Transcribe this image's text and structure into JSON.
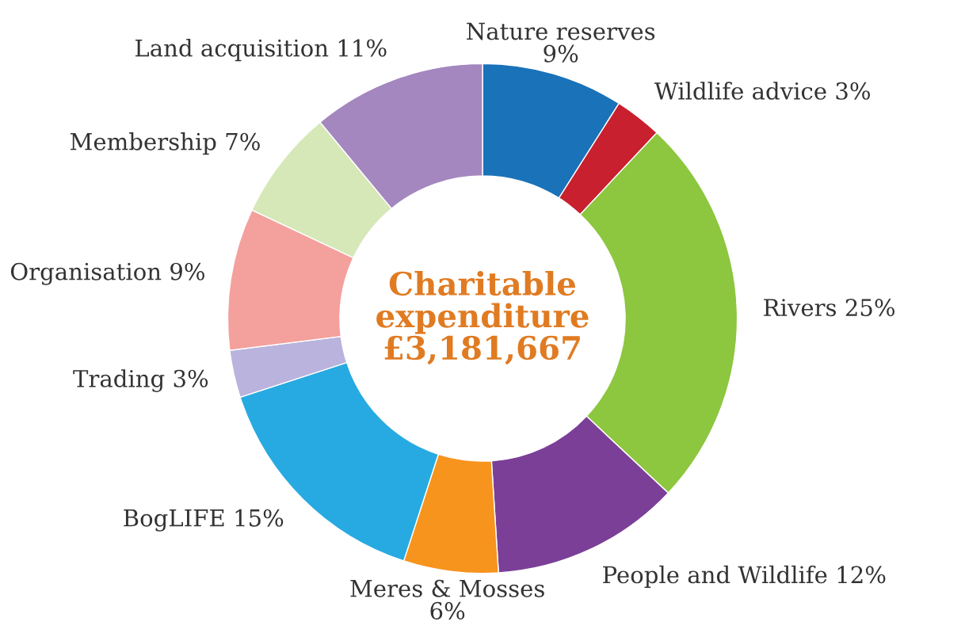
{
  "chart_data": {
    "type": "donut",
    "title": "Charitable expenditure £3,181,667",
    "categories": [
      "Nature reserves",
      "Wildlife advice",
      "Rivers",
      "People and Wildlife",
      "Meres & Mosses",
      "BogLIFE",
      "Trading",
      "Organisation",
      "Membership",
      "Land acquisition"
    ],
    "values": [
      9,
      3,
      25,
      12,
      6,
      15,
      3,
      9,
      7,
      11
    ],
    "value_labels": [
      "9%",
      "3%",
      "25%",
      "12%",
      "6%",
      "15%",
      "3%",
      "9%",
      "7%",
      "11%"
    ],
    "colors": [
      "#1a72b9",
      "#c8202f",
      "#8dc63f",
      "#7b3f98",
      "#f7941d",
      "#27aae1",
      "#b9b3dd",
      "#f4a09c",
      "#d6e8b8",
      "#a487bf"
    ],
    "legend": false
  }
}
